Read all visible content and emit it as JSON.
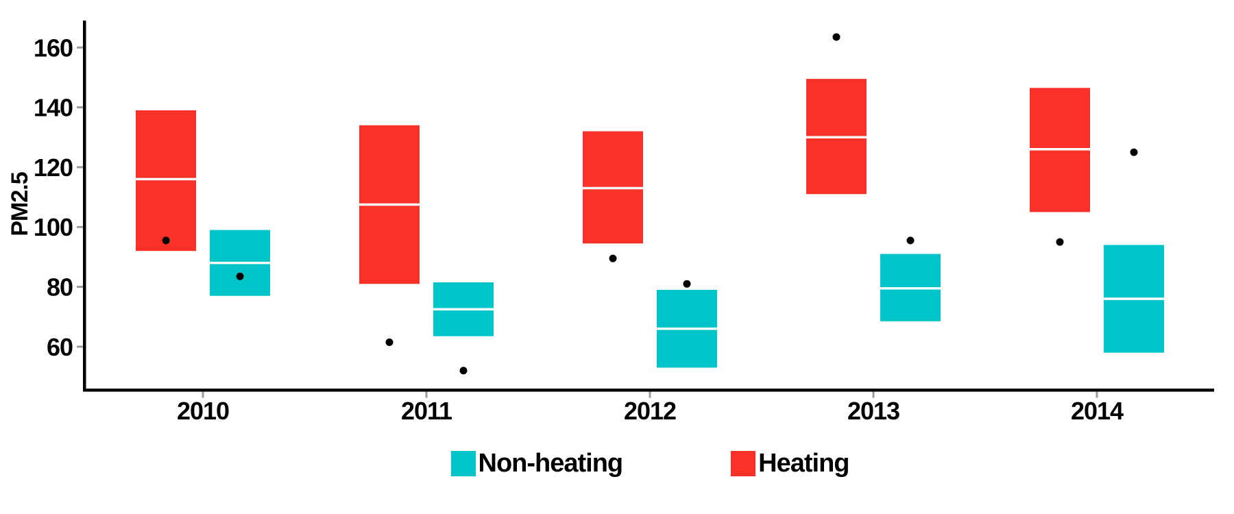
{
  "chart_data": {
    "type": "boxplot",
    "title": "",
    "xlabel": "",
    "ylabel": "PM2.5",
    "categories": [
      "2010",
      "2011",
      "2012",
      "2013",
      "2014"
    ],
    "y_ticks": [
      60,
      80,
      100,
      120,
      140,
      160
    ],
    "ylim": [
      46,
      169
    ],
    "grid": false,
    "legend_position": "bottom",
    "series": [
      {
        "name": "Heating",
        "color": "#F93128",
        "boxes": [
          {
            "upper": 139,
            "median": 116,
            "lower": 92,
            "outliers": [
              95.5
            ]
          },
          {
            "upper": 134,
            "median": 107.5,
            "lower": 81,
            "outliers": [
              61.5
            ]
          },
          {
            "upper": 132,
            "median": 113,
            "lower": 94.5,
            "outliers": [
              89.5
            ]
          },
          {
            "upper": 149.5,
            "median": 130,
            "lower": 111,
            "outliers": [
              163.5
            ]
          },
          {
            "upper": 146.5,
            "median": 126,
            "lower": 105,
            "outliers": [
              95
            ]
          }
        ]
      },
      {
        "name": "Non-heating",
        "color": "#00C5C8",
        "boxes": [
          {
            "upper": 99,
            "median": 88,
            "lower": 77,
            "outliers": [
              83.5
            ]
          },
          {
            "upper": 81.5,
            "median": 72.5,
            "lower": 63.5,
            "outliers": [
              52
            ]
          },
          {
            "upper": 79,
            "median": 66,
            "lower": 53,
            "outliers": [
              81
            ]
          },
          {
            "upper": 91,
            "median": 79.5,
            "lower": 68.5,
            "outliers": [
              95.5
            ]
          },
          {
            "upper": 94,
            "median": 76,
            "lower": 58,
            "outliers": [
              125
            ]
          }
        ]
      }
    ],
    "style": {
      "axis_color": "#000000",
      "tick_color": "#9B9B9B",
      "median_line_color": "#ffffff",
      "outlier_color": "#000000",
      "background": "#ffffff"
    }
  },
  "legend": {
    "items": [
      {
        "label": "Non-heating",
        "color": "#00C5C8"
      },
      {
        "label": "Heating",
        "color": "#F93128"
      }
    ]
  }
}
